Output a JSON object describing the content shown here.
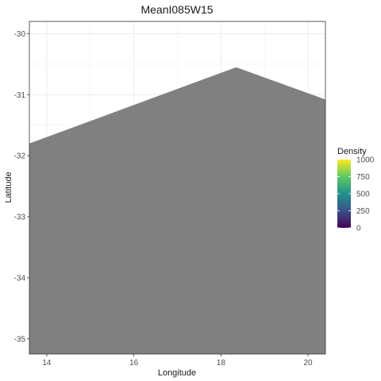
{
  "chart_data": {
    "type": "map",
    "title": "MeanI085W15",
    "xlabel": "Longitude",
    "ylabel": "Latitude",
    "xlim": [
      13.6,
      20.4
    ],
    "ylim": [
      -35.25,
      -29.8
    ],
    "x_ticks": [
      {
        "value": 14,
        "label": "14"
      },
      {
        "value": 16,
        "label": "16"
      },
      {
        "value": 18,
        "label": "18"
      },
      {
        "value": 20,
        "label": "20"
      }
    ],
    "y_ticks": [
      {
        "value": -30,
        "label": "-30"
      },
      {
        "value": -31,
        "label": "-31"
      },
      {
        "value": -32,
        "label": "-32"
      },
      {
        "value": -33,
        "label": "-33"
      },
      {
        "value": -34,
        "label": "-34"
      },
      {
        "value": -35,
        "label": "-35"
      }
    ],
    "grid": true,
    "land_polygon": [
      [
        13.6,
        -31.8
      ],
      [
        18.35,
        -30.55
      ],
      [
        20.4,
        -31.08
      ],
      [
        20.4,
        -35.25
      ],
      [
        13.6,
        -35.25
      ]
    ],
    "land_color": "#808080",
    "legend": {
      "title": "Density",
      "placement": "right",
      "min": 0,
      "max": 1000,
      "ticks": [
        {
          "value": 1000,
          "label": "1000"
        },
        {
          "value": 750,
          "label": "750"
        },
        {
          "value": 500,
          "label": "500"
        },
        {
          "value": 250,
          "label": "250"
        },
        {
          "value": 0,
          "label": "0"
        }
      ],
      "colors": [
        "#440154",
        "#3b528b",
        "#21918c",
        "#5ec962",
        "#fde725"
      ]
    }
  }
}
